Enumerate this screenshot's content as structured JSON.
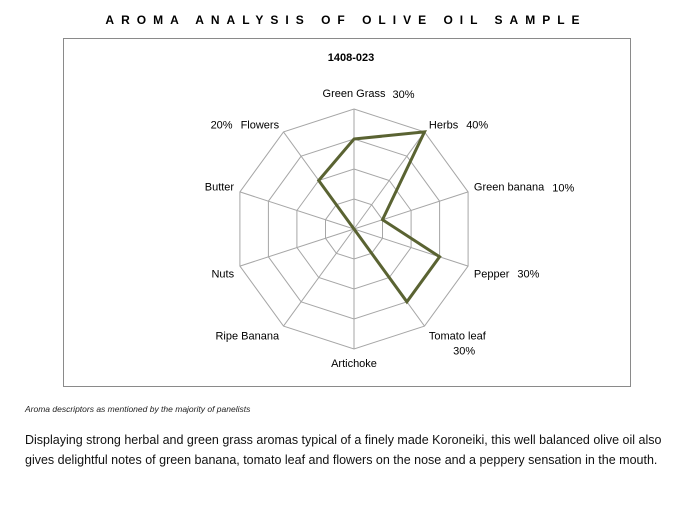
{
  "page": {
    "title": "AROMA ANALYSIS OF OLIVE OIL SAMPLE",
    "footnote": "Aroma descriptors as mentioned by the majority of panelists",
    "description": "Displaying strong herbal and green grass aromas typical of a finely made Koroneiki, this well balanced olive oil also gives delightful notes of green banana, tomato leaf and flowers on the nose and a peppery sensation in the mouth."
  },
  "chart_data": {
    "type": "radar",
    "title": "1408-023",
    "categories": [
      "Green Grass",
      "Herbs",
      "Green banana",
      "Pepper",
      "Tomato leaf",
      "Artichoke",
      "Ripe Banana",
      "Nuts",
      "Butter",
      "Flowers"
    ],
    "value_labels": [
      "30%",
      "40%",
      "10%",
      "30%",
      "30%",
      "",
      "",
      "",
      "",
      "20%"
    ],
    "series": [
      {
        "values": [
          30,
          40,
          10,
          30,
          30,
          0,
          0,
          0,
          0,
          20
        ]
      }
    ],
    "rlim": [
      0,
      40
    ],
    "rings": 4,
    "grid": true,
    "series_color": "#5a6332",
    "grid_color": "#a6a6a6"
  }
}
